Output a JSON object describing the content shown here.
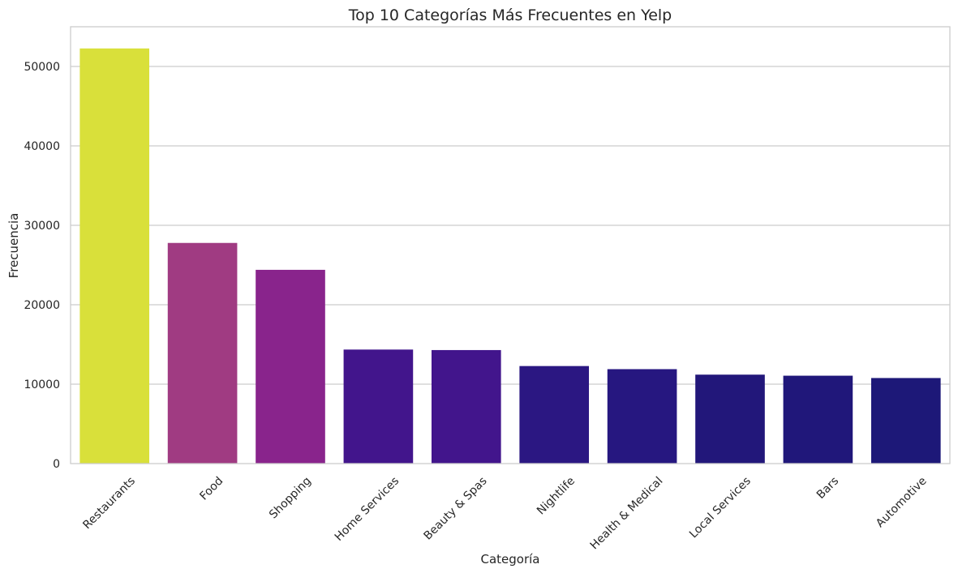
{
  "chart_data": {
    "type": "bar",
    "title": "Top 10 Categorías Más Frecuentes en Yelp",
    "xlabel": "Categoría",
    "ylabel": "Frecuencia",
    "categories": [
      "Restaurants",
      "Food",
      "Shopping",
      "Home Services",
      "Beauty & Spas",
      "Nightlife",
      "Health & Medical",
      "Local Services",
      "Bars",
      "Automotive"
    ],
    "values": [
      52268,
      27781,
      24395,
      14356,
      14292,
      12281,
      11890,
      11198,
      11065,
      10773
    ],
    "colors": [
      "#d9e03a",
      "#a03b82",
      "#89248c",
      "#42158c",
      "#42158c",
      "#2b1782",
      "#261780",
      "#22177a",
      "#20177a",
      "#1d1878"
    ],
    "yticks": [
      0,
      10000,
      20000,
      30000,
      40000,
      50000
    ],
    "ylim": [
      0,
      55000
    ],
    "grid": true,
    "xtick_rotation": 45
  }
}
